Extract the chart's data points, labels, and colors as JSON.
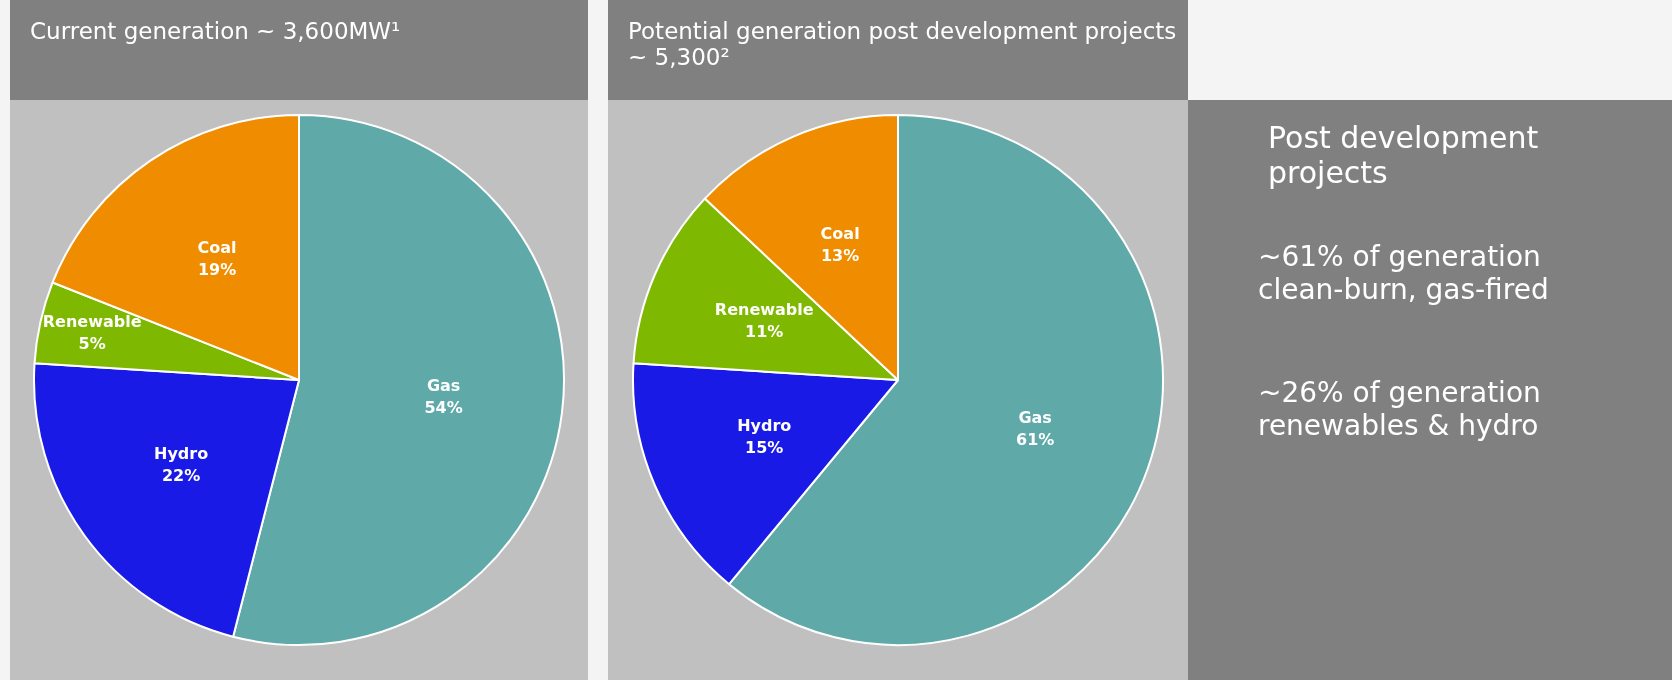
{
  "chart_data": [
    {
      "type": "pie",
      "title": "Current generation  ~ 3,600MW¹",
      "categories": [
        "Gas",
        "Hydro",
        "Renewable",
        "Coal"
      ],
      "values": [
        54,
        22,
        5,
        19
      ],
      "value_labels": [
        "54%",
        "22%",
        "5%",
        "19%"
      ],
      "colors": [
        "#5fa9a9",
        "#1a1ae6",
        "#7fb800",
        "#f08c00"
      ],
      "legend": false
    },
    {
      "type": "pie",
      "title": "Potential generation  post development projects ~ 5,300²",
      "categories": [
        "Gas",
        "Hydro",
        "Renewable",
        "Coal"
      ],
      "values": [
        61,
        15,
        11,
        13
      ],
      "value_labels": [
        "61%",
        "15%",
        "11%",
        "13%"
      ],
      "colors": [
        "#5fa9a9",
        "#1a1ae6",
        "#7fb800",
        "#f08c00"
      ],
      "legend": false
    },
    {
      "type": "other",
      "title": "Post development projects",
      "annotations": [
        "~61% of generation clean-burn, gas-fired",
        "~26% of generation renewables & hydro"
      ]
    }
  ]
}
